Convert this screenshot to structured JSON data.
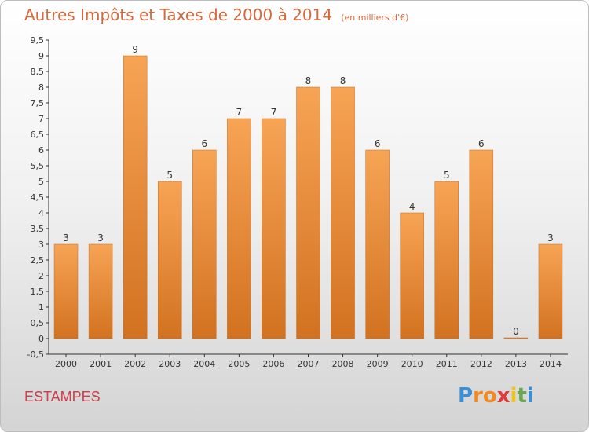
{
  "chart_data": {
    "type": "bar",
    "title": "Autres Impôts et Taxes de 2000 à 2014",
    "subtitle": "(en milliers d'€)",
    "categories": [
      "2000",
      "2001",
      "2002",
      "2003",
      "2004",
      "2005",
      "2006",
      "2007",
      "2008",
      "2009",
      "2010",
      "2011",
      "2012",
      "2013",
      "2014"
    ],
    "values": [
      3,
      3,
      9,
      5,
      6,
      7,
      7,
      8,
      8,
      6,
      4,
      5,
      6,
      0,
      3
    ],
    "value_labels": [
      "3",
      "3",
      "9",
      "5",
      "6",
      "7",
      "7",
      "8",
      "8",
      "6",
      "4",
      "5",
      "6",
      "0",
      "3"
    ],
    "ylim": [
      -0.5,
      9.5
    ],
    "yticks": [
      "-0,5",
      "0",
      "0,5",
      "1",
      "1,5",
      "2",
      "2,5",
      "3",
      "3,5",
      "4",
      "4,5",
      "5",
      "5,5",
      "6",
      "6,5",
      "7",
      "7,5",
      "8",
      "8,5",
      "9",
      "9,5"
    ],
    "ytick_values": [
      -0.5,
      0,
      0.5,
      1,
      1.5,
      2,
      2.5,
      3,
      3.5,
      4,
      4.5,
      5,
      5.5,
      6,
      6.5,
      7,
      7.5,
      8,
      8.5,
      9,
      9.5
    ],
    "bar_color_top": "#f7a455",
    "bar_color_bottom": "#d27220",
    "grid": false,
    "legend": "none"
  },
  "footer": {
    "label": "ESTAMPES",
    "logo_letters": [
      "P",
      "r",
      "o",
      "x",
      "i",
      "t",
      "i"
    ],
    "logo_colors": [
      "#3a8fd6",
      "#f08a1c",
      "#f08a1c",
      "#e23a3a",
      "#f0c419",
      "#6aa84f",
      "#3a8fd6"
    ]
  }
}
